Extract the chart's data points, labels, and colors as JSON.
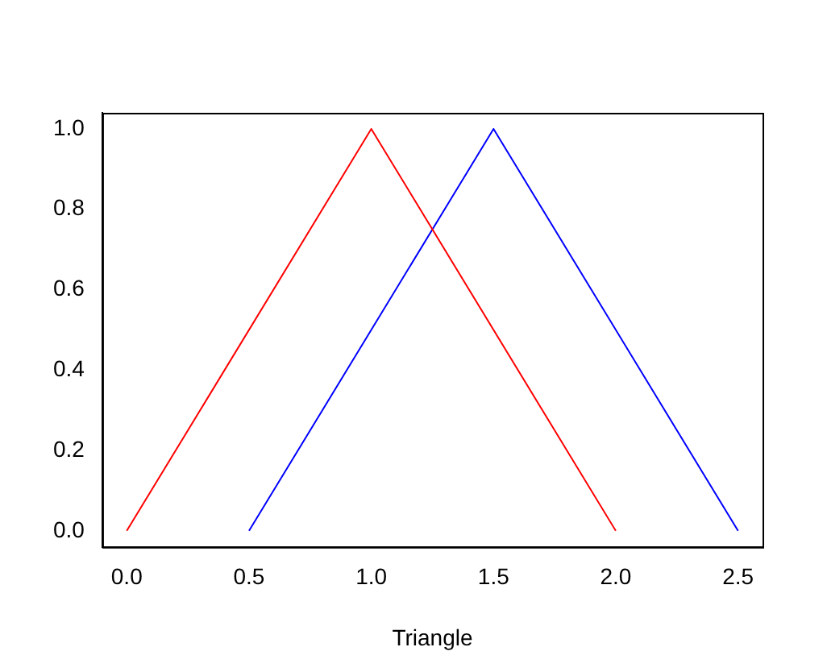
{
  "chart_data": {
    "type": "line",
    "xlabel": "Triangle",
    "grid": false,
    "marker": "none",
    "legend": false,
    "xlim": [
      -0.1,
      2.6
    ],
    "ylim": [
      -0.04,
      1.04
    ],
    "xticks": [
      {
        "value": 0,
        "label": "0.0"
      },
      {
        "value": 0.5,
        "label": "0.5"
      },
      {
        "value": 1,
        "label": "1.0"
      },
      {
        "value": 1.5,
        "label": "1.5"
      },
      {
        "value": 2,
        "label": "2.0"
      },
      {
        "value": 2.5,
        "label": "2.5"
      }
    ],
    "yticks": [
      {
        "value": 0,
        "label": "0.0"
      },
      {
        "value": 0.2,
        "label": "0.2"
      },
      {
        "value": 0.4,
        "label": "0.4"
      },
      {
        "value": 0.6,
        "label": "0.6"
      },
      {
        "value": 0.8,
        "label": "0.8"
      },
      {
        "value": 1,
        "label": "1.0"
      }
    ],
    "series": [
      {
        "color": "#ff0000",
        "x": [
          0,
          1,
          2
        ],
        "values": [
          0,
          1,
          0
        ]
      },
      {
        "color": "#0000ff",
        "x": [
          0.5,
          1.5,
          2.5
        ],
        "values": [
          0,
          1,
          0
        ]
      }
    ]
  }
}
